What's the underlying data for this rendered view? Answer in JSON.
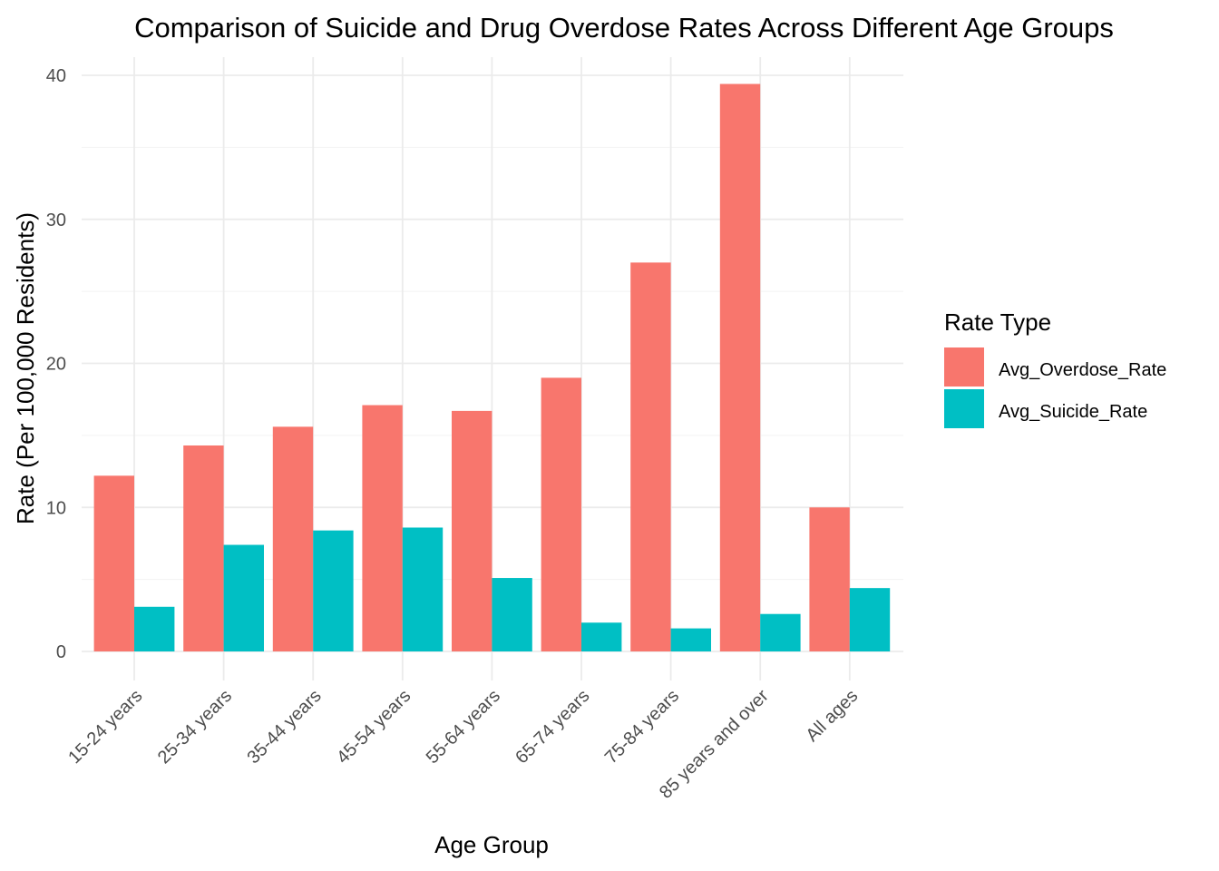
{
  "chart_data": {
    "type": "bar",
    "title": "Comparison of Suicide and Drug Overdose Rates Across Different Age Groups",
    "xlabel": "Age Group",
    "ylabel": "Rate (Per 100,000 Residents)",
    "categories": [
      "15-24 years",
      "25-34 years",
      "35-44 years",
      "45-54 years",
      "55-64 years",
      "65-74 years",
      "75-84 years",
      "85 years and over",
      "All ages"
    ],
    "series": [
      {
        "name": "Avg_Overdose_Rate",
        "color": "#F8766D",
        "values": [
          12.2,
          14.3,
          15.6,
          17.1,
          16.7,
          19.0,
          27.0,
          39.4,
          10.0
        ]
      },
      {
        "name": "Avg_Suicide_Rate",
        "color": "#00BFC4",
        "values": [
          3.1,
          7.4,
          8.4,
          8.6,
          5.1,
          2.0,
          1.6,
          2.6,
          4.4
        ]
      }
    ],
    "ylim": [
      0,
      40
    ],
    "yticks": [
      0,
      10,
      20,
      30,
      40
    ],
    "grid": true,
    "legend": {
      "title": "Rate Type",
      "position": "right"
    }
  }
}
